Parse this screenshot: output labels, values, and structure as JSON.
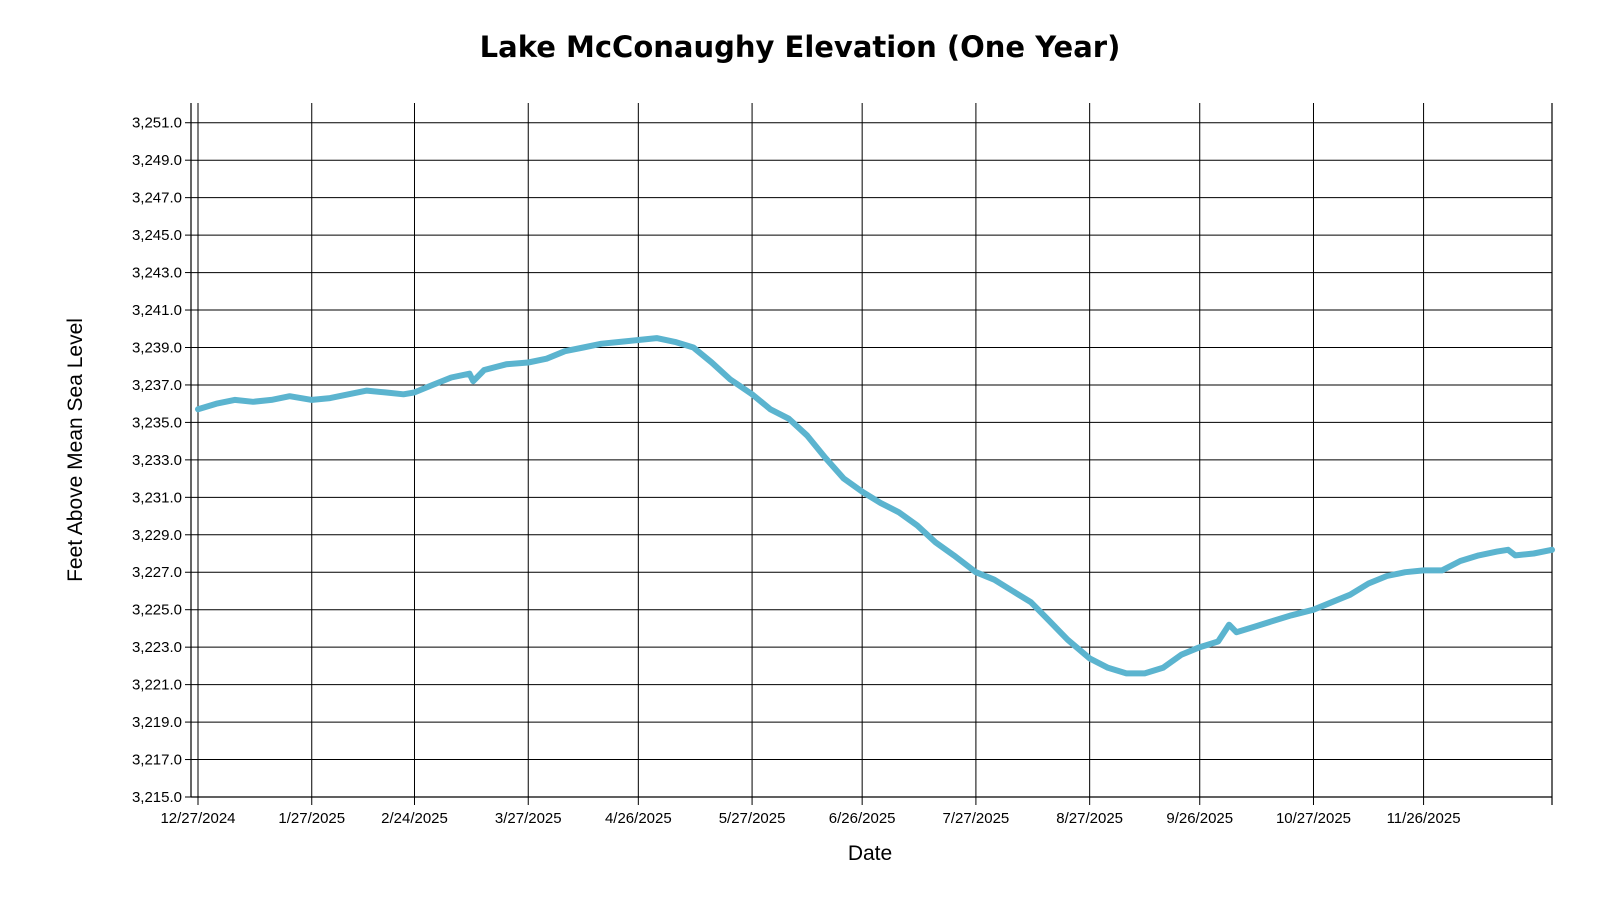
{
  "chart_data": {
    "type": "line",
    "title": "Lake McConaughy Elevation (One Year)",
    "xlabel": "Date",
    "ylabel": "Feet Above Mean Sea Level",
    "x_range": [
      "2024-12-27",
      "2025-12-31"
    ],
    "ylim": [
      3215.0,
      3252.0
    ],
    "y_ticks": [
      3215.0,
      3217.0,
      3219.0,
      3221.0,
      3223.0,
      3225.0,
      3227.0,
      3229.0,
      3231.0,
      3233.0,
      3235.0,
      3237.0,
      3239.0,
      3241.0,
      3243.0,
      3245.0,
      3247.0,
      3249.0,
      3251.0
    ],
    "y_tick_labels": [
      "3,215.0",
      "3,217.0",
      "3,219.0",
      "3,221.0",
      "3,223.0",
      "3,225.0",
      "3,227.0",
      "3,229.0",
      "3,231.0",
      "3,233.0",
      "3,235.0",
      "3,237.0",
      "3,239.0",
      "3,241.0",
      "3,243.0",
      "3,245.0",
      "3,247.0",
      "3,249.0",
      "3,251.0"
    ],
    "x_ticks": [
      "2024-12-27",
      "2025-01-27",
      "2025-02-24",
      "2025-03-27",
      "2025-04-26",
      "2025-05-27",
      "2025-06-26",
      "2025-07-27",
      "2025-08-27",
      "2025-09-26",
      "2025-10-27",
      "2025-11-26"
    ],
    "x_tick_labels": [
      "12/27/2024",
      "1/27/2025",
      "2/24/2025",
      "3/27/2025",
      "4/26/2025",
      "5/27/2025",
      "6/26/2025",
      "7/27/2025",
      "8/27/2025",
      "9/26/2025",
      "10/27/2025",
      "11/26/2025"
    ],
    "grid": true,
    "line_color": "#5bb4cf",
    "series": [
      {
        "x": [
          "2024-12-27",
          "2025-01-01",
          "2025-01-06",
          "2025-01-11",
          "2025-01-16",
          "2025-01-21",
          "2025-01-27",
          "2025-02-01",
          "2025-02-06",
          "2025-02-11",
          "2025-02-16",
          "2025-02-21",
          "2025-02-24",
          "2025-03-01",
          "2025-03-06",
          "2025-03-11",
          "2025-03-12",
          "2025-03-15",
          "2025-03-21",
          "2025-03-27",
          "2025-04-01",
          "2025-04-06",
          "2025-04-11",
          "2025-04-16",
          "2025-04-21",
          "2025-04-26",
          "2025-05-01",
          "2025-05-06",
          "2025-05-11",
          "2025-05-16",
          "2025-05-21",
          "2025-05-27",
          "2025-06-01",
          "2025-06-06",
          "2025-06-11",
          "2025-06-16",
          "2025-06-21",
          "2025-06-26",
          "2025-07-01",
          "2025-07-06",
          "2025-07-11",
          "2025-07-16",
          "2025-07-21",
          "2025-07-27",
          "2025-08-01",
          "2025-08-06",
          "2025-08-11",
          "2025-08-16",
          "2025-08-21",
          "2025-08-27",
          "2025-09-01",
          "2025-09-06",
          "2025-09-11",
          "2025-09-16",
          "2025-09-21",
          "2025-09-26",
          "2025-10-01",
          "2025-10-04",
          "2025-10-06",
          "2025-10-11",
          "2025-10-16",
          "2025-10-21",
          "2025-10-27",
          "2025-11-01",
          "2025-11-06",
          "2025-11-11",
          "2025-11-16",
          "2025-11-21",
          "2025-11-26",
          "2025-12-01",
          "2025-12-06",
          "2025-12-11",
          "2025-12-16",
          "2025-12-19",
          "2025-12-21",
          "2025-12-26",
          "2025-12-31"
        ],
        "y": [
          3235.7,
          3236.0,
          3236.2,
          3236.1,
          3236.2,
          3236.4,
          3236.2,
          3236.3,
          3236.5,
          3236.7,
          3236.6,
          3236.5,
          3236.6,
          3237.0,
          3237.4,
          3237.6,
          3237.2,
          3237.8,
          3238.1,
          3238.2,
          3238.4,
          3238.8,
          3239.0,
          3239.2,
          3239.3,
          3239.4,
          3239.5,
          3239.3,
          3239.0,
          3238.2,
          3237.3,
          3236.5,
          3235.7,
          3235.2,
          3234.3,
          3233.1,
          3232.0,
          3231.3,
          3230.7,
          3230.2,
          3229.5,
          3228.6,
          3227.9,
          3227.0,
          3226.6,
          3226.0,
          3225.4,
          3224.4,
          3223.4,
          3222.4,
          3221.9,
          3221.6,
          3221.6,
          3221.9,
          3222.6,
          3223.0,
          3223.3,
          3224.2,
          3223.8,
          3224.1,
          3224.4,
          3224.7,
          3225.0,
          3225.4,
          3225.8,
          3226.4,
          3226.8,
          3227.0,
          3227.1,
          3227.1,
          3227.6,
          3227.9,
          3228.1,
          3228.2,
          3227.9,
          3228.0,
          3228.2
        ]
      }
    ]
  }
}
